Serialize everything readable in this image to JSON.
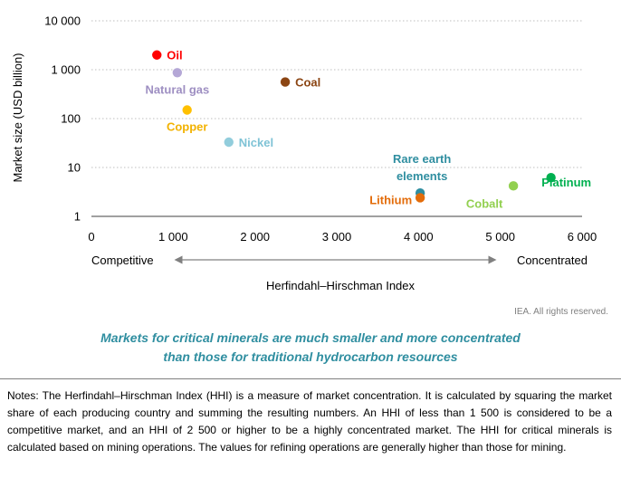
{
  "chart_data": {
    "type": "scatter",
    "xlabel": "Herfindahl–Hirschman Index",
    "ylabel": "Market size (USD billion)",
    "xlim": [
      0,
      6000
    ],
    "ylim": [
      1,
      10000
    ],
    "y_scale": "log",
    "x_ticks": [
      0,
      1000,
      2000,
      3000,
      4000,
      5000,
      6000
    ],
    "x_tick_labels": [
      "0",
      "1 000",
      "2 000",
      "3 000",
      "4 000",
      "5 000",
      "6 000"
    ],
    "y_ticks": [
      1,
      10,
      100,
      1000,
      10000
    ],
    "y_tick_labels": [
      "1",
      "10",
      "100",
      "1 000",
      "10 000"
    ],
    "grid": "horizontal dotted",
    "direction_labels": {
      "left": "Competitive",
      "right": "Concentrated"
    },
    "points": [
      {
        "label": "Oil",
        "x": 800,
        "y": 2000,
        "color": "#ff0000",
        "label_color": "#ff0000",
        "label_pos": "right"
      },
      {
        "label": "Natural gas",
        "x": 1050,
        "y": 870,
        "color": "#b4a7d6",
        "label_color": "#9e8fc2",
        "label_pos": "below"
      },
      {
        "label": "Coal",
        "x": 2370,
        "y": 560,
        "color": "#8b4513",
        "label_color": "#8b4513",
        "label_pos": "right"
      },
      {
        "label": "Copper",
        "x": 1170,
        "y": 150,
        "color": "#ffc000",
        "label_color": "#f2b200",
        "label_pos": "below"
      },
      {
        "label": "Nickel",
        "x": 1680,
        "y": 33,
        "color": "#92cddc",
        "label_color": "#7fc3d6",
        "label_pos": "right"
      },
      {
        "label": "Rare earth elements",
        "label_lines": [
          "Rare earth",
          "elements"
        ],
        "x": 4020,
        "y": 3.0,
        "color": "#2f8ea0",
        "label_color": "#2f8ea0",
        "label_pos": "above"
      },
      {
        "label": "Lithium",
        "x": 4020,
        "y": 2.4,
        "color": "#e36c0a",
        "label_color": "#e36c0a",
        "label_pos": "left"
      },
      {
        "label": "Cobalt",
        "x": 5160,
        "y": 4.2,
        "color": "#92d050",
        "label_color": "#92d050",
        "label_pos": "below-left"
      },
      {
        "label": "Platinum",
        "x": 5620,
        "y": 6.2,
        "color": "#00b050",
        "label_color": "#00b050",
        "label_pos": "below-right"
      }
    ]
  },
  "credit": "IEA. All rights reserved.",
  "caption": {
    "line1": "Markets for critical minerals are much smaller and more concentrated",
    "line2": "than those for traditional hydrocarbon resources"
  },
  "notes": "Notes: The Herfindahl–Hirschman Index (HHI) is a measure of market concentration. It is calculated by squaring the market share of each producing country and summing the resulting numbers. An HHI of less than 1 500 is considered to be a competitive market, and an HHI of 2 500 or higher to be a highly concentrated market. The HHI for critical minerals is calculated based on mining operations. The values for refining operations are generally higher than those for mining.",
  "colors": {
    "axis": "#808080",
    "grid": "#bfbfbf",
    "arrow": "#808080",
    "caption": "#2f8ea0"
  }
}
